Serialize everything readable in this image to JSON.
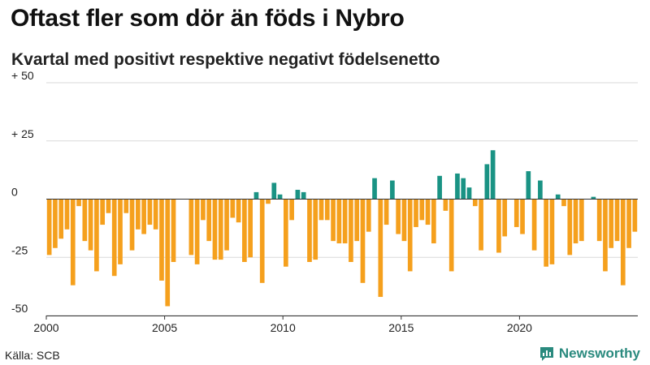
{
  "header": {
    "title": "Oftast fler som dör än föds i Nybro",
    "subtitle": "Kvartal med positivt respektive negativt födelsenetto"
  },
  "footer": {
    "source": "Källa: SCB",
    "brand": "Newsworthy"
  },
  "colors": {
    "positive": "#1a9384",
    "negative": "#f5a01d",
    "grid": "#d9d9d9",
    "axis": "#333333",
    "brand": "#2a8a7e"
  },
  "chart_data": {
    "type": "bar",
    "title": "Oftast fler som dör än föds i Nybro",
    "subtitle": "Kvartal med positivt respektive negativt födelsenetto",
    "xlabel": "",
    "ylabel": "",
    "ylim": [
      -50,
      50
    ],
    "yticks": [
      {
        "value": 50,
        "label": "+ 50"
      },
      {
        "value": 25,
        "label": "+ 25"
      },
      {
        "value": 0,
        "label": "0"
      },
      {
        "value": -25,
        "label": "-25"
      },
      {
        "value": -50,
        "label": "-50"
      }
    ],
    "xticks": [
      "2000",
      "2005",
      "2010",
      "2015",
      "2020"
    ],
    "start_year": 2000,
    "grid": true,
    "categories": [
      "2000 K1",
      "2000 K2",
      "2000 K3",
      "2000 K4",
      "2001 K1",
      "2001 K2",
      "2001 K3",
      "2001 K4",
      "2002 K1",
      "2002 K2",
      "2002 K3",
      "2002 K4",
      "2003 K1",
      "2003 K2",
      "2003 K3",
      "2003 K4",
      "2004 K1",
      "2004 K2",
      "2004 K3",
      "2004 K4",
      "2005 K1",
      "2005 K2",
      "2005 K3",
      "2005 K4",
      "2006 K1",
      "2006 K2",
      "2006 K3",
      "2006 K4",
      "2007 K1",
      "2007 K2",
      "2007 K3",
      "2007 K4",
      "2008 K1",
      "2008 K2",
      "2008 K3",
      "2008 K4",
      "2009 K1",
      "2009 K2",
      "2009 K3",
      "2009 K4",
      "2010 K1",
      "2010 K2",
      "2010 K3",
      "2010 K4",
      "2011 K1",
      "2011 K2",
      "2011 K3",
      "2011 K4",
      "2012 K1",
      "2012 K2",
      "2012 K3",
      "2012 K4",
      "2013 K1",
      "2013 K2",
      "2013 K3",
      "2013 K4",
      "2014 K1",
      "2014 K2",
      "2014 K3",
      "2014 K4",
      "2015 K1",
      "2015 K2",
      "2015 K3",
      "2015 K4",
      "2016 K1",
      "2016 K2",
      "2016 K3",
      "2016 K4",
      "2017 K1",
      "2017 K2",
      "2017 K3",
      "2017 K4",
      "2018 K1",
      "2018 K2",
      "2018 K3",
      "2018 K4",
      "2019 K1",
      "2019 K2",
      "2019 K3",
      "2019 K4",
      "2020 K1",
      "2020 K2",
      "2020 K3",
      "2020 K4",
      "2021 K1",
      "2021 K2",
      "2021 K3",
      "2021 K4",
      "2022 K1",
      "2022 K2",
      "2022 K3",
      "2022 K4",
      "2023 K1",
      "2023 K2",
      "2023 K3",
      "2023 K4",
      "2024 K1",
      "2024 K2",
      "2024 K3",
      "2024 K4"
    ],
    "values": [
      -24,
      -21,
      -17,
      -13,
      -37,
      -3,
      -18,
      -22,
      -31,
      -11,
      -6,
      -33,
      -28,
      -6,
      -22,
      -13,
      -15,
      -11,
      -13,
      -35,
      -46,
      -27,
      0,
      0,
      -24,
      -28,
      -9,
      -18,
      -26,
      -26,
      -22,
      -8,
      -10,
      -27,
      -25,
      3,
      -36,
      -2,
      7,
      2,
      -29,
      -9,
      4,
      3,
      -27,
      -26,
      -9,
      -9,
      -18,
      -19,
      -19,
      -27,
      -18,
      -36,
      -14,
      9,
      -42,
      -11,
      8,
      -15,
      -18,
      -31,
      -12,
      -9,
      -11,
      -19,
      10,
      -5,
      -31,
      11,
      9,
      5,
      -3,
      -22,
      15,
      21,
      -23,
      -16,
      0,
      -12,
      -15,
      12,
      -22,
      8,
      -29,
      -28,
      2,
      -3,
      -24,
      -19,
      -18,
      0,
      1,
      -18,
      -31,
      -21,
      -18,
      -37,
      -21,
      -14
    ]
  }
}
